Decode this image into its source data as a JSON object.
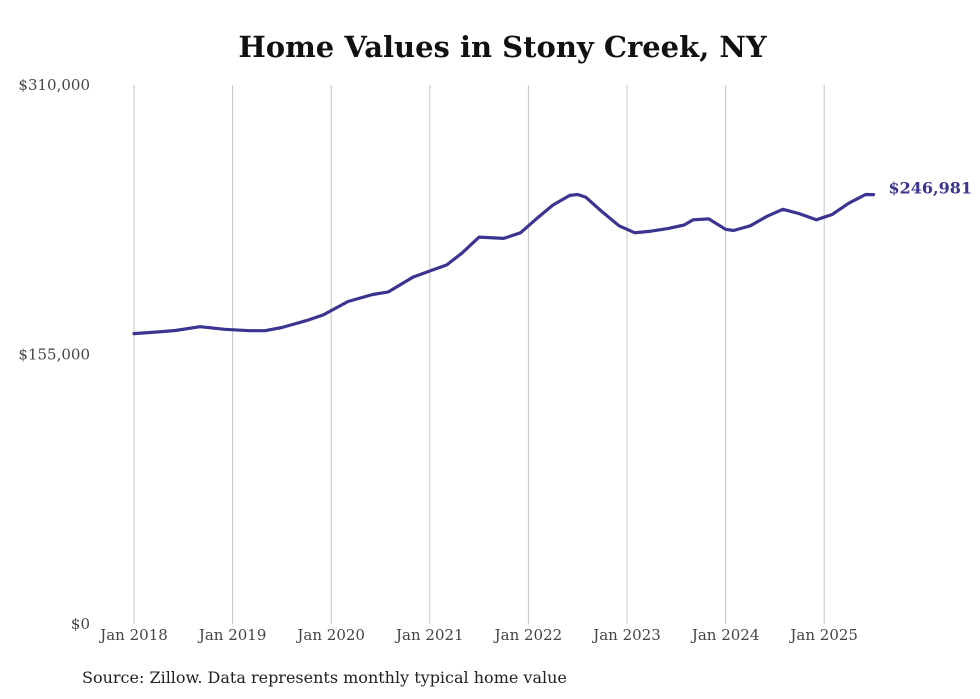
{
  "chart_data": {
    "type": "line",
    "title": "Home Values in Stony Creek, NY",
    "xlabel": "",
    "ylabel": "",
    "ylim": [
      0,
      310000
    ],
    "y_ticks": [
      {
        "value": 0,
        "label": "$0"
      },
      {
        "value": 155000,
        "label": "$155,000"
      },
      {
        "value": 310000,
        "label": "$310,000"
      }
    ],
    "x_ticks": [
      {
        "value": 2018,
        "label": "Jan 2018"
      },
      {
        "value": 2019,
        "label": "Jan 2019"
      },
      {
        "value": 2020,
        "label": "Jan 2020"
      },
      {
        "value": 2021,
        "label": "Jan 2021"
      },
      {
        "value": 2022,
        "label": "Jan 2022"
      },
      {
        "value": 2023,
        "label": "Jan 2023"
      },
      {
        "value": 2024,
        "label": "Jan 2024"
      },
      {
        "value": 2025,
        "label": "Jan 2025"
      }
    ],
    "xlim": [
      2018,
      2025.5
    ],
    "grid": "vertical",
    "line_color": "#3b3591",
    "end_label": "$246,981",
    "series": [
      {
        "x": [
          2018.0,
          2018.25,
          2018.42,
          2018.67,
          2018.92,
          2019.17,
          2019.33,
          2019.5,
          2019.75,
          2019.92,
          2020.17,
          2020.42,
          2020.58,
          2020.83,
          2021.0,
          2021.17,
          2021.33,
          2021.5,
          2021.75,
          2021.92,
          2022.08,
          2022.25,
          2022.42,
          2022.5,
          2022.58,
          2022.75,
          2022.92,
          2023.08,
          2023.25,
          2023.42,
          2023.58,
          2023.67,
          2023.83,
          2024.0,
          2024.08,
          2024.25,
          2024.42,
          2024.58,
          2024.75,
          2024.92,
          2025.08,
          2025.25,
          2025.42,
          2025.5
        ],
        "values": [
          167000,
          168000,
          168800,
          171000,
          169500,
          168700,
          168700,
          170500,
          174500,
          177800,
          185500,
          189500,
          191000,
          199500,
          203000,
          206500,
          213500,
          222500,
          221800,
          225000,
          233000,
          241000,
          246500,
          247000,
          245500,
          237000,
          229000,
          225000,
          226000,
          227500,
          229500,
          232500,
          233000,
          227000,
          226300,
          229000,
          234500,
          238500,
          236000,
          232500,
          235500,
          242000,
          247000,
          246981
        ]
      }
    ]
  },
  "source_text": "Source: Zillow. Data represents monthly typical home value"
}
